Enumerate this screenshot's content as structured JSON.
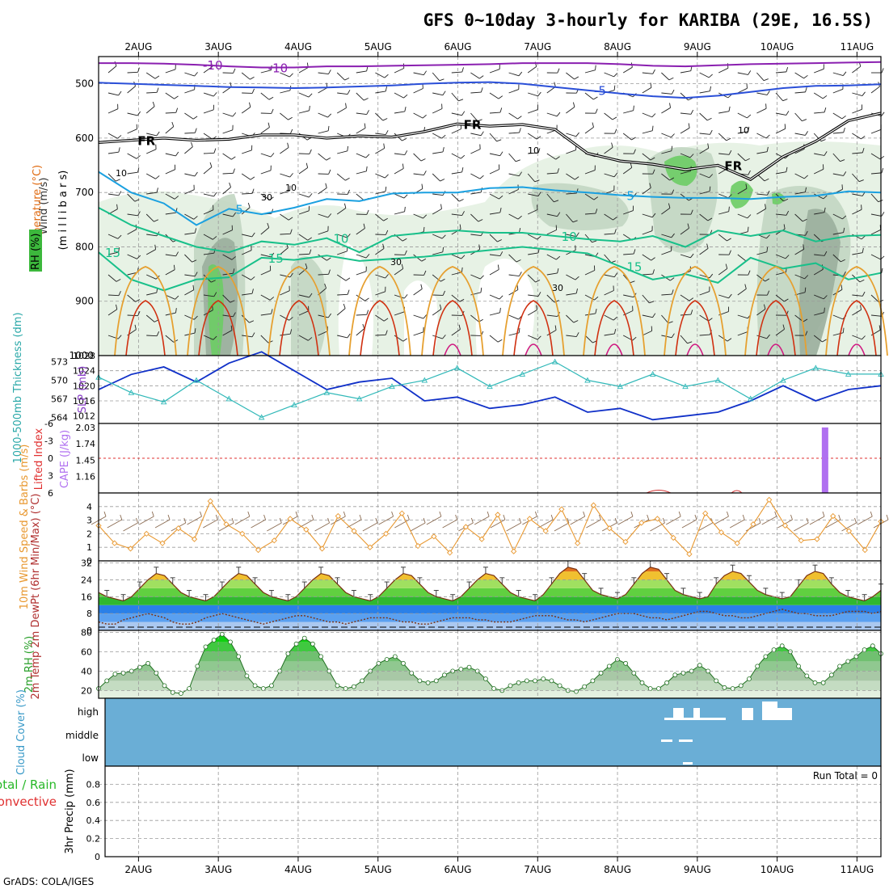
{
  "title": "GFS 0~10day 3-hourly for KARIBA (29E, 16.5S)",
  "credit": "GrADS: COLA/IGES",
  "colors": {
    "purple": "#8a1fb0",
    "blue": "#2a4fd8",
    "cyan": "#1aa0e0",
    "teal": "#18c08a",
    "orange": "#e6a030",
    "red": "#d03010",
    "magenta": "#d01880",
    "rh_light": "#e4f1e2",
    "rh_mid": "#c2d6c2",
    "rh_dark": "#9aae9c",
    "rh_green": "#6ccc64",
    "slp": "#1030c8",
    "thickness": "#30b8b8",
    "cape": "#b070f0",
    "wind10": "#e89830",
    "cloud_bg": "#6aaed6",
    "cloud_fg": "#ffffff"
  },
  "chart_data": [
    {
      "type": "contour",
      "panel": "upper_air",
      "ylabel_wind": "Wind (m/s)",
      "ylabel_temp": "Temperature (°C)",
      "ylabel_rh": "RH (%)",
      "ylabel_pressure": "(m i l l i b a r s)",
      "pressure_ticks": [
        "500",
        "600",
        "700",
        "800",
        "900",
        "1000"
      ],
      "ylim": [
        450,
        1000
      ],
      "x_ticks": [
        "2AUG",
        "3AUG",
        "4AUG",
        "5AUG",
        "6AUG",
        "7AUG",
        "8AUG",
        "9AUG",
        "10AUG",
        "11AUG"
      ],
      "series": [
        {
          "label": "-10",
          "labels_at": [
            3,
            5
          ],
          "values": [
            462,
            462,
            463,
            465,
            468,
            470,
            470,
            468,
            468,
            467,
            466,
            465,
            464,
            462,
            462,
            462,
            464,
            467,
            468,
            466,
            464,
            463,
            462,
            461,
            460
          ]
        },
        {
          "label": "-5",
          "labels_at": [
            15
          ],
          "values": [
            498,
            500,
            502,
            504,
            506,
            507,
            508,
            507,
            505,
            503,
            500,
            498,
            497,
            500,
            506,
            512,
            518,
            523,
            526,
            522,
            515,
            508,
            504,
            503,
            501
          ]
        },
        {
          "label": "FR",
          "labels_at": [
            1,
            11,
            19
          ],
          "values": [
            608,
            604,
            600,
            604,
            602,
            594,
            594,
            600,
            596,
            598,
            588,
            574,
            578,
            575,
            584,
            628,
            642,
            648,
            658,
            650,
            676,
            634,
            606,
            568,
            554
          ]
        },
        {
          "label": "5",
          "labels_at": [
            4,
            16
          ],
          "values": [
            662,
            700,
            720,
            760,
            730,
            740,
            728,
            712,
            716,
            702,
            700,
            700,
            692,
            690,
            696,
            700,
            705,
            708,
            710,
            710,
            712,
            708,
            706,
            698,
            700
          ]
        },
        {
          "label": "10",
          "labels_at": [
            7,
            14
          ],
          "values": [
            728,
            760,
            780,
            800,
            810,
            790,
            796,
            784,
            810,
            780,
            774,
            770,
            774,
            774,
            780,
            786,
            790,
            780,
            800,
            770,
            780,
            770,
            790,
            780,
            778
          ]
        },
        {
          "label": "15",
          "labels_at": [
            0,
            5,
            16
          ],
          "values": [
            810,
            860,
            880,
            860,
            856,
            820,
            824,
            816,
            826,
            822,
            818,
            812,
            806,
            800,
            806,
            812,
            836,
            860,
            850,
            866,
            820,
            840,
            830,
            860,
            848
          ]
        }
      ],
      "contour_labels": [
        "30",
        "10"
      ]
    },
    {
      "type": "line",
      "panel": "thickness_slp",
      "ylabel_left": "1000-500mb Thickness (dm)",
      "ylabel_right": "SLP (mb)",
      "left_ticks": [
        "573",
        "570",
        "567",
        "564"
      ],
      "right_ticks": [
        "1028",
        "1024",
        "1020",
        "1016",
        "1012"
      ],
      "series": [
        {
          "name": "SLP",
          "values": [
            1019,
            1023,
            1025,
            1021,
            1026,
            1029,
            1024,
            1019,
            1021,
            1022,
            1016,
            1017,
            1014,
            1015,
            1017,
            1013,
            1014,
            1011,
            1012,
            1013,
            1016,
            1020,
            1016,
            1019,
            1020
          ]
        },
        {
          "name": "Thickness",
          "values": [
            570.5,
            568,
            566.5,
            570,
            567,
            564,
            566,
            568,
            567,
            569,
            570,
            572,
            569,
            571,
            573,
            570,
            569,
            571,
            569,
            570,
            567,
            570,
            572,
            571,
            571
          ]
        }
      ]
    },
    {
      "type": "bar",
      "panel": "lifted_cape",
      "ylabel_left": "Lifted Index",
      "ylabel_right": "CAPE (J/kg)",
      "left_ticks": [
        "-6",
        "-3",
        "0",
        "3",
        "6"
      ],
      "right_ticks": [
        "2.03",
        "1.74",
        "1.45",
        "1.16"
      ],
      "cape_bar": {
        "day": 10.6,
        "value": 2.03
      },
      "zero_line": 0
    },
    {
      "type": "line",
      "panel": "wind10m",
      "ylabel": "10m Wind Speed & Barbs (m/s)",
      "ticks": [
        "4",
        "3",
        "2",
        "1",
        "0"
      ],
      "ylim": [
        0,
        5
      ],
      "values": [
        2.6,
        1.3,
        0.9,
        2.0,
        1.3,
        2.4,
        1.6,
        4.4,
        2.7,
        2.0,
        0.8,
        1.5,
        3.1,
        2.3,
        0.9,
        3.3,
        2.2,
        1.0,
        2.0,
        3.5,
        1.1,
        1.8,
        0.6,
        2.5,
        1.6,
        3.4,
        0.7,
        3.1,
        2.2,
        3.8,
        1.3,
        4.1,
        2.4,
        1.4,
        2.8,
        3.1,
        1.7,
        0.5,
        3.5,
        2.1,
        1.3,
        2.7,
        4.5,
        2.6,
        1.5,
        1.6,
        3.3,
        2.2,
        0.8,
        2.9
      ]
    },
    {
      "type": "area",
      "panel": "temp2m",
      "ylabel": "2m Temp 2m DewPt (6hr Min/Max) (°C)",
      "ticks": [
        "32",
        "24",
        "16",
        "8",
        "0"
      ],
      "ylim": [
        0,
        33
      ],
      "temp": [
        18,
        16,
        15,
        14,
        16,
        20,
        24,
        27,
        26,
        22,
        18,
        16,
        15,
        14,
        16,
        20,
        24,
        27,
        26,
        22,
        18,
        16,
        15,
        14,
        16,
        20,
        24,
        27,
        26,
        22,
        18,
        16,
        15,
        14,
        16,
        20,
        24,
        27,
        26,
        22,
        18,
        16,
        15,
        14,
        16,
        20,
        24,
        27,
        26,
        22,
        18,
        16,
        15,
        14,
        17,
        22,
        27,
        30,
        29,
        24,
        19,
        17,
        16,
        15,
        17,
        22,
        27,
        30,
        29,
        24,
        19,
        17,
        16,
        15,
        16,
        22,
        26,
        28,
        27,
        23,
        19,
        17,
        16,
        15,
        16,
        21,
        26,
        28,
        27,
        22,
        18,
        16,
        15,
        14,
        16,
        19
      ],
      "dewpt": [
        4,
        3,
        3,
        5,
        6,
        7,
        8,
        7,
        6,
        4,
        3,
        3,
        4,
        6,
        7,
        8,
        7,
        6,
        5,
        4,
        3,
        4,
        5,
        6,
        7,
        7,
        6,
        5,
        4,
        4,
        3,
        4,
        5,
        6,
        6,
        6,
        5,
        4,
        4,
        3,
        3,
        4,
        5,
        6,
        6,
        6,
        5,
        5,
        4,
        4,
        4,
        5,
        6,
        7,
        7,
        7,
        6,
        5,
        5,
        4,
        5,
        6,
        7,
        8,
        8,
        8,
        7,
        6,
        6,
        5,
        6,
        7,
        8,
        9,
        9,
        8,
        7,
        7,
        6,
        6,
        7,
        8,
        9,
        10,
        9,
        8,
        8,
        7,
        7,
        7,
        8,
        9,
        9,
        9,
        8,
        9
      ]
    },
    {
      "type": "area",
      "panel": "rh2m",
      "ylabel": "2m RH (%)",
      "ticks": [
        "80",
        "60",
        "40",
        "20"
      ],
      "ylim": [
        12,
        82
      ],
      "values": [
        22,
        30,
        37,
        38,
        40,
        44,
        48,
        38,
        25,
        18,
        17,
        22,
        45,
        65,
        72,
        78,
        70,
        55,
        35,
        25,
        22,
        25,
        40,
        58,
        68,
        74,
        68,
        55,
        40,
        25,
        22,
        24,
        30,
        40,
        48,
        52,
        55,
        48,
        38,
        30,
        28,
        30,
        36,
        40,
        42,
        44,
        40,
        32,
        22,
        20,
        25,
        28,
        30,
        30,
        32,
        30,
        25,
        20,
        19,
        24,
        30,
        38,
        45,
        52,
        48,
        38,
        28,
        22,
        22,
        28,
        36,
        38,
        40,
        46,
        40,
        30,
        23,
        22,
        25,
        32,
        45,
        55,
        62,
        66,
        60,
        45,
        35,
        28,
        28,
        36,
        45,
        50,
        55,
        62,
        66,
        58
      ]
    },
    {
      "type": "heatmap",
      "panel": "cloud",
      "ylabel": "Cloud Cover (%)",
      "levels": [
        "high",
        "middle",
        "low"
      ]
    },
    {
      "type": "bar",
      "panel": "precip",
      "ylabel_total": "Total / Rain",
      "ylabel_conv": "Convective",
      "ylabel_precip": "3hr Precip (mm)",
      "ticks": [
        "0.8",
        "0.6",
        "0.4",
        "0.2",
        "0"
      ],
      "ylim": [
        0,
        1
      ],
      "run_total": "Run Total = 0",
      "values": []
    }
  ]
}
